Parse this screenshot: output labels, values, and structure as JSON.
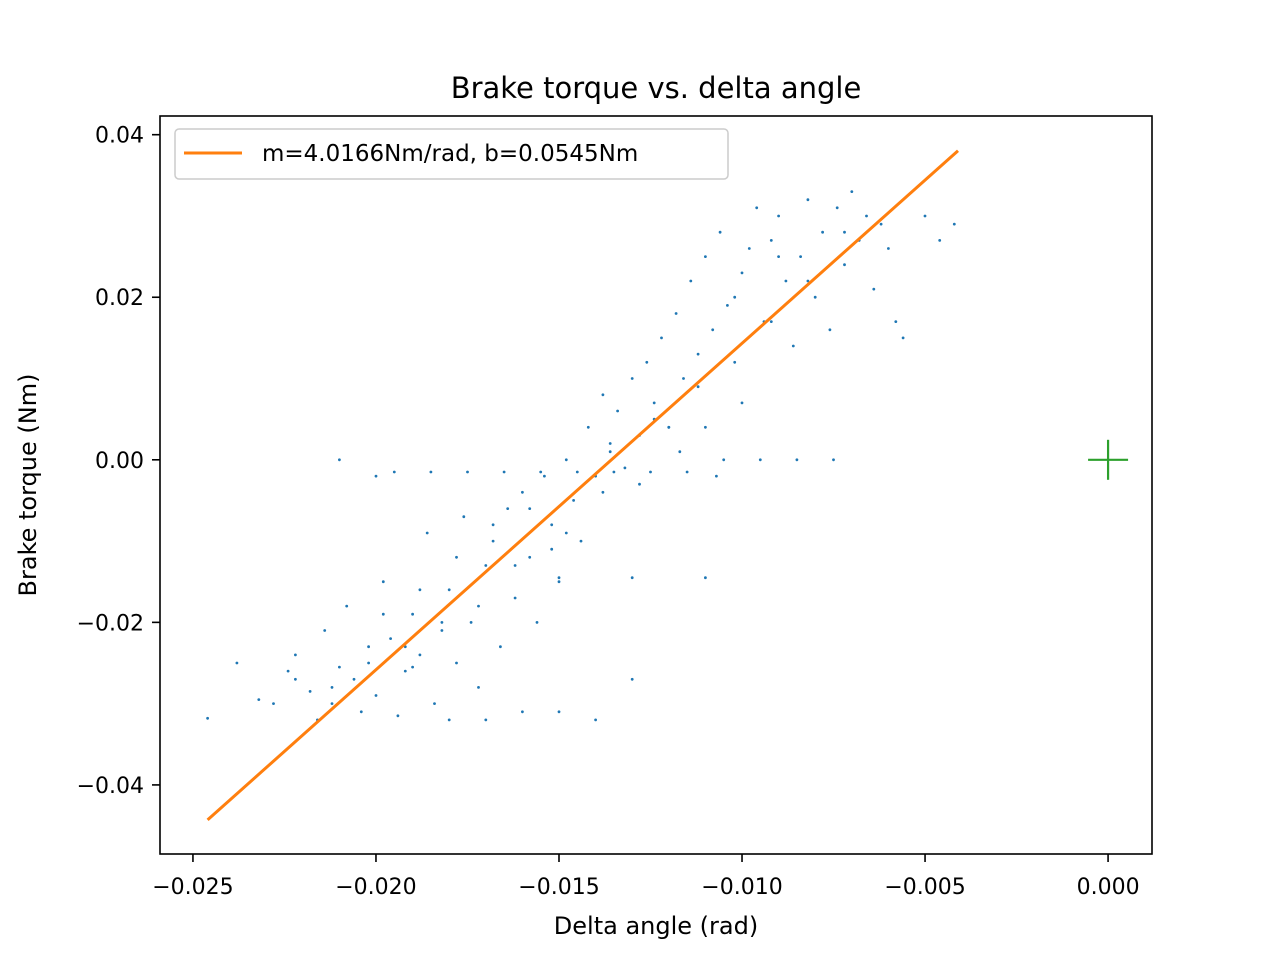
{
  "chart_data": {
    "type": "scatter",
    "title": "Brake torque vs. delta angle",
    "xlabel": "Delta angle (rad)",
    "ylabel": "Brake torque (Nm)",
    "xlim": [
      -0.0259,
      0.0012
    ],
    "ylim": [
      -0.0485,
      0.0423
    ],
    "xticks": [
      -0.025,
      -0.02,
      -0.015,
      -0.01,
      -0.005,
      0.0
    ],
    "xtick_labels": [
      "−0.025",
      "−0.020",
      "−0.015",
      "−0.010",
      "−0.005",
      "0.000"
    ],
    "yticks": [
      -0.04,
      -0.02,
      0.0,
      0.02,
      0.04
    ],
    "ytick_labels": [
      "−0.04",
      "−0.02",
      "0.00",
      "0.02",
      "0.04"
    ],
    "grid": false,
    "legend_position": "top-left",
    "colors": {
      "scatter": "#1f77b4",
      "fit": "#ff7f0e",
      "marker": "#2ca02c"
    },
    "series": [
      {
        "name": "",
        "kind": "scatter",
        "x": [
          -0.0246,
          -0.0238,
          -0.0232,
          -0.0228,
          -0.0224,
          -0.0222,
          -0.0218,
          -0.0216,
          -0.0214,
          -0.0212,
          -0.021,
          -0.0208,
          -0.0206,
          -0.0204,
          -0.0202,
          -0.02,
          -0.0198,
          -0.0196,
          -0.0194,
          -0.0192,
          -0.019,
          -0.0188,
          -0.0186,
          -0.0184,
          -0.0182,
          -0.018,
          -0.0178,
          -0.0176,
          -0.0174,
          -0.0172,
          -0.017,
          -0.0168,
          -0.0166,
          -0.0164,
          -0.0162,
          -0.016,
          -0.0158,
          -0.0156,
          -0.0154,
          -0.0152,
          -0.015,
          -0.0148,
          -0.0146,
          -0.0144,
          -0.0142,
          -0.014,
          -0.0138,
          -0.0136,
          -0.0134,
          -0.0132,
          -0.013,
          -0.0128,
          -0.0126,
          -0.0124,
          -0.0122,
          -0.012,
          -0.0118,
          -0.0116,
          -0.0114,
          -0.0112,
          -0.011,
          -0.0108,
          -0.0106,
          -0.0104,
          -0.0102,
          -0.01,
          -0.0098,
          -0.0096,
          -0.0094,
          -0.0092,
          -0.009,
          -0.0088,
          -0.0086,
          -0.0084,
          -0.0082,
          -0.008,
          -0.0078,
          -0.0076,
          -0.0074,
          -0.0072,
          -0.007,
          -0.0068,
          -0.0066,
          -0.0064,
          -0.0062,
          -0.006,
          -0.0058,
          -0.0056,
          -0.005,
          -0.0046,
          -0.0042,
          -0.02,
          -0.0195,
          -0.0185,
          -0.0175,
          -0.0165,
          -0.0155,
          -0.0145,
          -0.0135,
          -0.0125,
          -0.0115,
          -0.0105,
          -0.0095,
          -0.0085,
          -0.0075,
          -0.018,
          -0.017,
          -0.016,
          -0.015,
          -0.014,
          -0.013,
          -0.012,
          -0.011,
          -0.01,
          -0.009,
          -0.021,
          -0.019,
          -0.015,
          -0.013,
          -0.011,
          -0.0117,
          -0.0107,
          -0.0128,
          -0.0138,
          -0.0152,
          -0.0162,
          -0.0172,
          -0.0182,
          -0.0192,
          -0.0202,
          -0.0212,
          -0.0222,
          -0.0158,
          -0.0168,
          -0.0178,
          -0.0188,
          -0.0198,
          -0.0148,
          -0.0136,
          -0.0124,
          -0.0112,
          -0.0102,
          -0.0092,
          -0.0082,
          -0.0072
        ],
        "y": [
          -0.0318,
          -0.025,
          -0.0295,
          -0.03,
          -0.026,
          -0.024,
          -0.0285,
          -0.032,
          -0.021,
          -0.03,
          -0.0255,
          -0.018,
          -0.027,
          -0.031,
          -0.023,
          -0.029,
          -0.015,
          -0.022,
          -0.0315,
          -0.026,
          -0.019,
          -0.024,
          -0.009,
          -0.03,
          -0.021,
          -0.016,
          -0.025,
          -0.007,
          -0.02,
          -0.028,
          -0.013,
          -0.01,
          -0.023,
          -0.006,
          -0.017,
          -0.004,
          -0.012,
          -0.02,
          -0.002,
          -0.008,
          -0.015,
          0.0,
          -0.005,
          -0.01,
          0.004,
          -0.002,
          0.008,
          0.001,
          0.006,
          -0.001,
          0.01,
          0.003,
          0.012,
          0.007,
          0.015,
          0.004,
          0.018,
          0.01,
          0.022,
          0.013,
          0.025,
          0.016,
          0.028,
          0.019,
          0.02,
          0.023,
          0.026,
          0.031,
          0.017,
          0.027,
          0.03,
          0.022,
          0.014,
          0.025,
          0.032,
          0.02,
          0.028,
          0.016,
          0.031,
          0.024,
          0.033,
          0.027,
          0.03,
          0.021,
          0.029,
          0.026,
          0.017,
          0.015,
          0.03,
          0.027,
          0.029,
          -0.002,
          -0.0015,
          -0.0015,
          -0.0015,
          -0.0015,
          -0.0015,
          -0.0015,
          -0.0015,
          -0.0015,
          -0.0015,
          0.0,
          0.0,
          0.0,
          0.0,
          -0.032,
          -0.032,
          -0.031,
          -0.031,
          -0.032,
          -0.027,
          0.004,
          0.004,
          0.007,
          0.025,
          0.0,
          -0.0255,
          -0.0145,
          -0.0145,
          -0.0145,
          0.001,
          -0.002,
          -0.003,
          -0.004,
          -0.011,
          -0.013,
          -0.018,
          -0.02,
          -0.023,
          -0.025,
          -0.028,
          -0.027,
          -0.006,
          -0.008,
          -0.012,
          -0.016,
          -0.019,
          -0.009,
          0.002,
          0.005,
          0.009,
          0.012,
          0.017,
          0.022,
          0.028
        ]
      },
      {
        "name": "m=4.0166Nm/rad, b=0.0545Nm",
        "kind": "line",
        "slope": 4.0166,
        "intercept": 0.0545,
        "x": [
          -0.0246,
          -0.0041
        ]
      },
      {
        "name": "",
        "kind": "marker",
        "marker": "+",
        "x": [
          0.0
        ],
        "y": [
          0.0
        ]
      }
    ]
  }
}
